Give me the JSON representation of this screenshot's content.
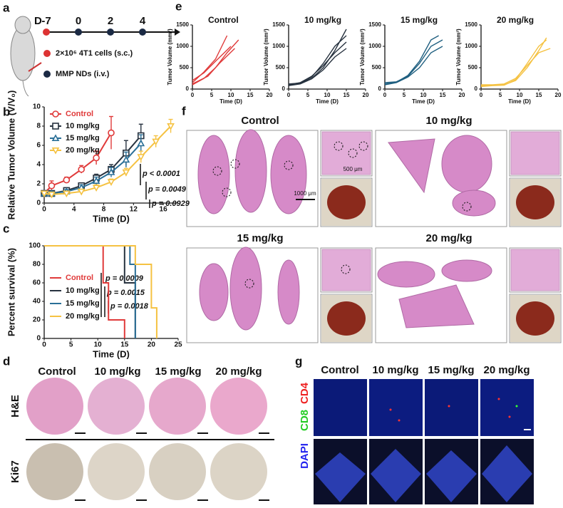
{
  "letters": [
    "a",
    "b",
    "c",
    "d",
    "e",
    "f",
    "g"
  ],
  "panel_a": {
    "day_label": "D",
    "days": [
      "-7",
      "0",
      "2",
      "4"
    ],
    "legend": [
      "2×10⁶ 4T1 cells (s.c.)",
      "MMP NDs (i.v.)"
    ]
  },
  "panel_d": {
    "columns": [
      "Control",
      "10 mg/kg",
      "15 mg/kg",
      "20 mg/kg"
    ],
    "rows": [
      "H&E",
      "Ki67"
    ]
  },
  "panel_f": {
    "groups": [
      "Control",
      "10 mg/kg",
      "15 mg/kg",
      "20 mg/kg"
    ],
    "scale_bars": [
      "500 μm",
      "1000 μm"
    ]
  },
  "panel_g": {
    "columns": [
      "Control",
      "10 mg/kg",
      "15 mg/kg",
      "20 mg/kg"
    ],
    "channels": [
      "CD4",
      "CD8",
      "DAPI"
    ]
  },
  "chart_data": [
    {
      "type": "errorline",
      "xlabel": "Time (D)",
      "ylabel": "Relative Tumor Volume (V/V₀)",
      "xlim": [
        0,
        18
      ],
      "xticks": [
        0,
        4,
        8,
        12,
        16
      ],
      "ylim": [
        0,
        10
      ],
      "yticks": [
        0,
        2,
        4,
        6,
        8,
        10
      ],
      "annotations": [
        "p < 0.0001",
        "p = 0.0049",
        "p = 0.0929"
      ],
      "series": [
        {
          "name": "Control",
          "color": "#e03a3a",
          "marker": "circle",
          "x": [
            0,
            1,
            3,
            5,
            7,
            9
          ],
          "values": [
            1,
            1.8,
            2.4,
            3.5,
            4.7,
            7.3
          ],
          "errors": [
            0.3,
            0.5,
            0.3,
            0.4,
            0.7,
            1.7
          ]
        },
        {
          "name": "10 mg/kg",
          "color": "#27323f",
          "marker": "square",
          "x": [
            0,
            1,
            3,
            5,
            7,
            9,
            11,
            13
          ],
          "values": [
            1,
            1.0,
            1.3,
            1.8,
            2.6,
            3.5,
            5.2,
            7.0
          ],
          "errors": [
            0.2,
            0.2,
            0.3,
            0.3,
            0.4,
            0.5,
            1.3,
            1.2
          ]
        },
        {
          "name": "15 mg/kg",
          "color": "#2a6f97",
          "marker": "triangle",
          "x": [
            0,
            1,
            3,
            5,
            7,
            9,
            11,
            13
          ],
          "values": [
            1,
            1.0,
            1.2,
            1.6,
            2.3,
            3.2,
            4.5,
            6.2
          ],
          "errors": [
            0.2,
            0.2,
            0.2,
            0.3,
            0.4,
            0.5,
            0.8,
            0.9
          ]
        },
        {
          "name": "20 mg/kg",
          "color": "#f5c242",
          "marker": "triangle-down",
          "x": [
            0,
            1,
            3,
            5,
            7,
            9,
            11,
            13,
            15,
            17
          ],
          "values": [
            1,
            0.9,
            1.0,
            1.2,
            1.6,
            2.2,
            3.2,
            4.8,
            6.4,
            8.0
          ],
          "errors": [
            0.2,
            0.2,
            0.2,
            0.2,
            0.3,
            0.3,
            0.4,
            0.6,
            0.6,
            0.7
          ]
        }
      ]
    },
    {
      "type": "step",
      "xlabel": "Time (D)",
      "ylabel": "Percent survival (%)",
      "xlim": [
        0,
        25
      ],
      "xticks": [
        0,
        5,
        10,
        15,
        20,
        25
      ],
      "ylim": [
        0,
        100
      ],
      "yticks": [
        0,
        20,
        40,
        60,
        80,
        100
      ],
      "annotations": [
        "p = 0.0009",
        "p = 0.0015",
        "p = 0.0018"
      ],
      "series": [
        {
          "name": "Control",
          "color": "#e03a3a",
          "x": [
            0,
            11,
            12,
            15
          ],
          "values": [
            100,
            60,
            20,
            0
          ]
        },
        {
          "name": "10 mg/kg",
          "color": "#27323f",
          "x": [
            0,
            15,
            17
          ],
          "values": [
            100,
            60,
            0
          ]
        },
        {
          "name": "15 mg/kg",
          "color": "#2a6f97",
          "x": [
            0,
            16,
            17
          ],
          "values": [
            100,
            80,
            0
          ]
        },
        {
          "name": "20 mg/kg",
          "color": "#f5c242",
          "x": [
            0,
            17,
            20,
            21
          ],
          "values": [
            100,
            80,
            33,
            0
          ]
        }
      ]
    },
    {
      "type": "line",
      "title": "Control",
      "xlabel": "Time (D)",
      "ylabel": "Tumor Volume (mm³)",
      "xlim": [
        0,
        20
      ],
      "xticks": [
        0,
        5,
        10,
        15,
        20
      ],
      "ylim": [
        0,
        1500
      ],
      "yticks": [
        0,
        500,
        1000,
        1500
      ],
      "color": "#e03a3a",
      "series": [
        {
          "x": [
            0,
            3,
            6,
            9
          ],
          "values": [
            150,
            400,
            700,
            1250
          ]
        },
        {
          "x": [
            0,
            3,
            6,
            9,
            12
          ],
          "values": [
            100,
            250,
            500,
            850,
            1150
          ]
        },
        {
          "x": [
            0,
            3,
            6,
            10
          ],
          "values": [
            200,
            380,
            650,
            1000
          ]
        },
        {
          "x": [
            0,
            4,
            7,
            11
          ],
          "values": [
            120,
            300,
            600,
            950
          ]
        }
      ]
    },
    {
      "type": "line",
      "title": "10 mg/kg",
      "xlabel": "Time (D)",
      "ylabel": "Tumor Volume (mm³)",
      "xlim": [
        0,
        20
      ],
      "xticks": [
        0,
        5,
        10,
        15,
        20
      ],
      "ylim": [
        0,
        1500
      ],
      "yticks": [
        0,
        500,
        1000,
        1500
      ],
      "color": "#27323f",
      "series": [
        {
          "x": [
            0,
            3,
            6,
            9,
            12,
            15
          ],
          "values": [
            100,
            130,
            250,
            500,
            900,
            1400
          ]
        },
        {
          "x": [
            0,
            3,
            6,
            9,
            12,
            15
          ],
          "values": [
            100,
            150,
            300,
            550,
            850,
            1100
          ]
        },
        {
          "x": [
            0,
            3,
            6,
            9,
            12,
            15
          ],
          "values": [
            120,
            140,
            280,
            600,
            1000,
            1250
          ]
        },
        {
          "x": [
            0,
            3,
            6,
            9,
            12,
            15
          ],
          "values": [
            80,
            120,
            240,
            450,
            750,
            950
          ]
        }
      ]
    },
    {
      "type": "line",
      "title": "15 mg/kg",
      "xlabel": "Time (D)",
      "ylabel": "Tumor Volume (mm³)",
      "xlim": [
        0,
        20
      ],
      "xticks": [
        0,
        5,
        10,
        15,
        20
      ],
      "ylim": [
        0,
        1500
      ],
      "yticks": [
        0,
        500,
        1000,
        1500
      ],
      "color": "#1f5f80",
      "series": [
        {
          "x": [
            0,
            3,
            6,
            9,
            12,
            15
          ],
          "values": [
            150,
            170,
            300,
            600,
            1000,
            1150
          ]
        },
        {
          "x": [
            0,
            3,
            6,
            9,
            12,
            14
          ],
          "values": [
            120,
            160,
            320,
            650,
            1150,
            1250
          ]
        },
        {
          "x": [
            0,
            3,
            6,
            9,
            12,
            15
          ],
          "values": [
            100,
            150,
            280,
            500,
            850,
            1000
          ]
        }
      ]
    },
    {
      "type": "line",
      "title": "20 mg/kg",
      "xlabel": "Time (D)",
      "ylabel": "Tumor Volume (mm³)",
      "xlim": [
        0,
        20
      ],
      "xticks": [
        0,
        5,
        10,
        15,
        20
      ],
      "ylim": [
        0,
        1500
      ],
      "yticks": [
        0,
        500,
        1000,
        1500
      ],
      "color": "#f5c242",
      "series": [
        {
          "x": [
            0,
            3,
            6,
            9,
            12,
            15,
            17
          ],
          "values": [
            80,
            90,
            100,
            200,
            500,
            900,
            1200
          ]
        },
        {
          "x": [
            0,
            3,
            6,
            9,
            12,
            15,
            17
          ],
          "values": [
            60,
            80,
            90,
            220,
            600,
            1000,
            1150
          ]
        },
        {
          "x": [
            0,
            3,
            6,
            9,
            12,
            15,
            18
          ],
          "values": [
            100,
            100,
            120,
            250,
            550,
            850,
            950
          ]
        }
      ]
    }
  ]
}
